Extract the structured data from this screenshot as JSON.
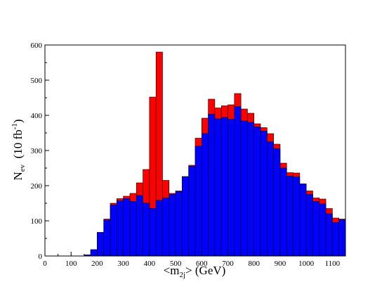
{
  "chart_data": {
    "type": "bar",
    "stacked": "overlay",
    "xlabel": {
      "main": "<m",
      "sub": "2j",
      "tail": "> (GeV)"
    },
    "ylabel": {
      "main": "N",
      "sub": "ev",
      "mid": "  (10 fb",
      "sup": "-1",
      "tail": ")"
    },
    "xlim": [
      0,
      1150
    ],
    "ylim": [
      0,
      600
    ],
    "xticks": [
      0,
      100,
      200,
      300,
      400,
      500,
      600,
      700,
      800,
      900,
      1000,
      1100
    ],
    "yticks": [
      0,
      100,
      200,
      300,
      400,
      500,
      600
    ],
    "bin_width": 25,
    "bin_start": 150,
    "grid": false,
    "series": [
      {
        "name": "",
        "color": "#ff0000",
        "values": [
          3,
          18,
          67,
          105,
          150,
          163,
          170,
          178,
          208,
          246,
          452,
          580,
          215,
          178,
          185,
          226,
          258,
          335,
          392,
          446,
          421,
          427,
          430,
          462,
          418,
          406,
          376,
          365,
          348,
          318,
          264,
          237,
          236,
          205,
          185,
          165,
          162,
          135,
          108,
          105
        ]
      },
      {
        "name": "",
        "color": "#0000ff",
        "values": [
          3,
          18,
          67,
          102,
          145,
          157,
          163,
          155,
          172,
          150,
          135,
          158,
          165,
          175,
          183,
          225,
          255,
          312,
          348,
          403,
          390,
          394,
          389,
          425,
          384,
          380,
          367,
          355,
          325,
          305,
          250,
          227,
          225,
          205,
          175,
          155,
          148,
          120,
          95,
          103
        ]
      }
    ]
  }
}
